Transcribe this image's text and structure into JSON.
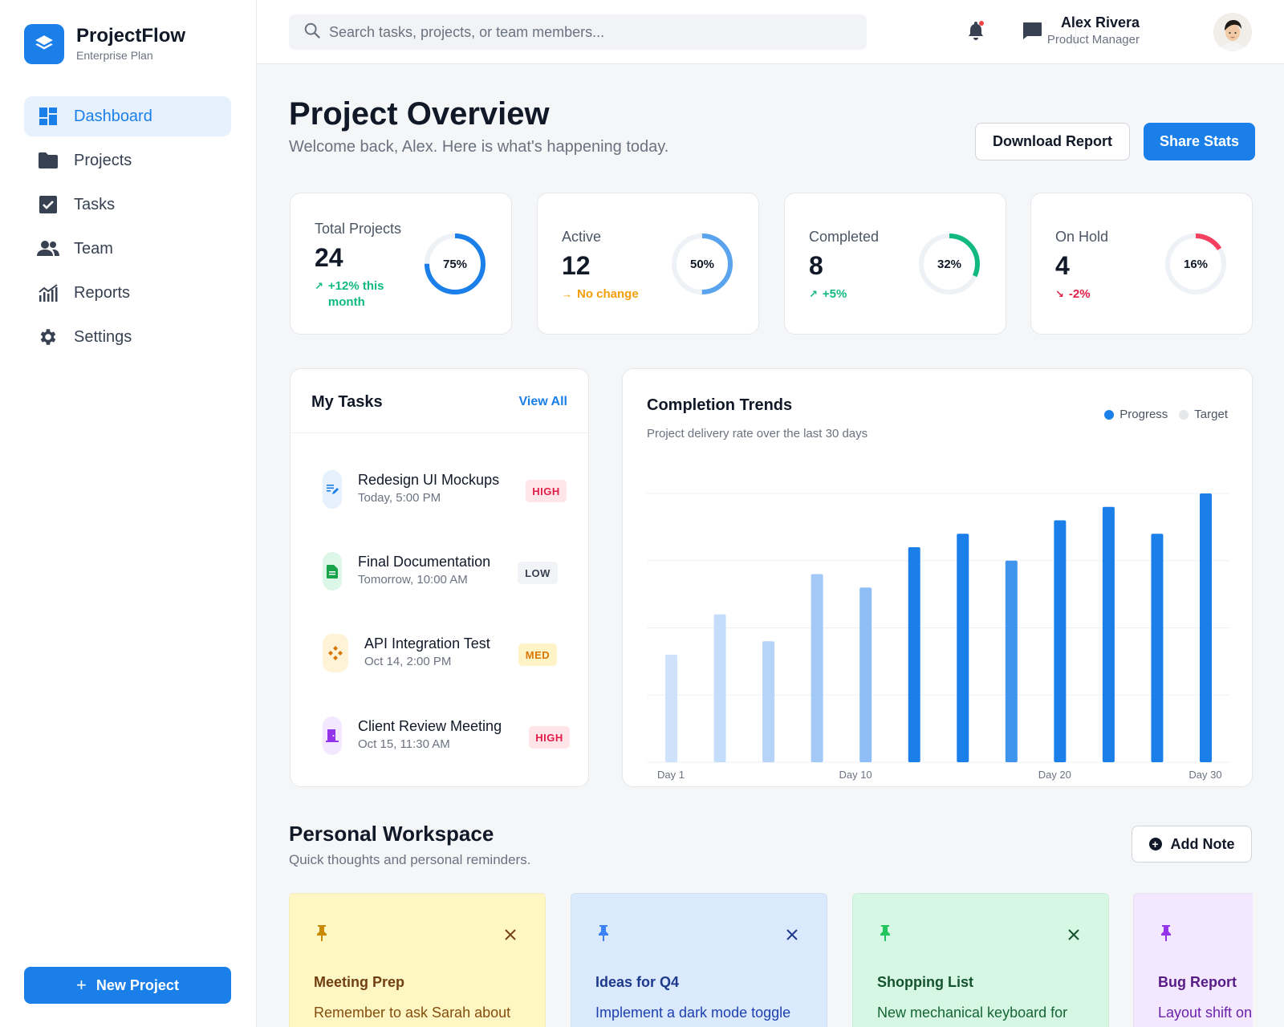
{
  "brand": {
    "name": "ProjectFlow",
    "plan": "Enterprise Plan"
  },
  "nav": [
    {
      "label": "Dashboard",
      "icon": "dashboard-icon",
      "active": true
    },
    {
      "label": "Projects",
      "icon": "folder-icon"
    },
    {
      "label": "Tasks",
      "icon": "checkbox-icon"
    },
    {
      "label": "Team",
      "icon": "team-icon"
    },
    {
      "label": "Reports",
      "icon": "chart-icon"
    },
    {
      "label": "Settings",
      "icon": "gear-icon"
    }
  ],
  "new_project_label": "New Project",
  "search": {
    "placeholder": "Search tasks, projects, or team members..."
  },
  "user": {
    "name": "Alex Rivera",
    "role": "Product Manager"
  },
  "page": {
    "title": "Project Overview",
    "subtitle": "Welcome back, Alex. Here is what's happening today.",
    "download_label": "Download Report",
    "share_label": "Share Stats"
  },
  "stats": [
    {
      "label": "Total Projects",
      "value": "24",
      "trend_line1": "+12% this",
      "trend_line2": "month",
      "trend_icon": "trend-up-icon",
      "percent": "75%",
      "fraction": 0.75,
      "color": "#1a7fe8",
      "trend_color": "#10b981"
    },
    {
      "label": "Active",
      "value": "12",
      "trend_line1": "No change",
      "trend_line2": "",
      "trend_icon": "arrow-right-icon",
      "percent": "50%",
      "fraction": 0.5,
      "color": "#5aa3ee",
      "trend_color": "#f59e0b"
    },
    {
      "label": "Completed",
      "value": "8",
      "trend_line1": "+5%",
      "trend_line2": "",
      "trend_icon": "trend-up-icon",
      "percent": "32%",
      "fraction": 0.32,
      "color": "#10b981",
      "trend_color": "#10b981"
    },
    {
      "label": "On Hold",
      "value": "4",
      "trend_line1": "-2%",
      "trend_line2": "",
      "trend_icon": "trend-down-icon",
      "percent": "16%",
      "fraction": 0.16,
      "color": "#f43f5e",
      "trend_color": "#e11d48"
    }
  ],
  "tasks_panel": {
    "title": "My Tasks",
    "view_all": "View All",
    "tasks": [
      {
        "title": "Redesign UI Mockups",
        "time": "Today, 5:00 PM",
        "priority": "HIGH",
        "icon": "edit-document-icon"
      },
      {
        "title": "Final Documentation",
        "time": "Tomorrow, 10:00 AM",
        "priority": "LOW",
        "icon": "document-icon"
      },
      {
        "title": "API Integration Test",
        "time": "Oct 14, 2:00 PM",
        "priority": "MED",
        "icon": "api-icon"
      },
      {
        "title": "Client Review Meeting",
        "time": "Oct 15, 11:30 AM",
        "priority": "HIGH",
        "icon": "meeting-room-icon"
      }
    ]
  },
  "chart_data": {
    "type": "bar",
    "title": "Completion Trends",
    "subtitle": "Project delivery rate over the last 30 days",
    "legend": [
      "Progress",
      "Target"
    ],
    "legend_colors": [
      "#1a7fe8",
      "#e5e7eb"
    ],
    "x_tick_labels": [
      "Day 1",
      "Day 10",
      "Day 20",
      "Day 30"
    ],
    "values": [
      40,
      55,
      45,
      70,
      65,
      80,
      85,
      75,
      90,
      95,
      85,
      100
    ],
    "ylim": [
      0,
      100
    ],
    "grid": true
  },
  "workspace": {
    "title": "Personal Workspace",
    "subtitle": "Quick thoughts and personal reminders.",
    "add_note": "Add Note",
    "notes": [
      {
        "title": "Meeting Prep",
        "body": "Remember to ask Sarah about",
        "bg": "#fef7c3",
        "accent": "#ca8a04",
        "title_color": "#713f12",
        "body_color": "#854d0e"
      },
      {
        "title": "Ideas for Q4",
        "body": "Implement a dark mode toggle",
        "bg": "#dbe9fd",
        "accent": "#3b82f6",
        "title_color": "#1e3a8a",
        "body_color": "#1e40af"
      },
      {
        "title": "Shopping List",
        "body": "New mechanical keyboard for",
        "bg": "#d5f7e3",
        "accent": "#22c55e",
        "title_color": "#14532d",
        "body_color": "#166534"
      },
      {
        "title": "Bug Report",
        "body": "Layout shift on",
        "bg": "#f3e8ff",
        "accent": "#9333ea",
        "title_color": "#581c87",
        "body_color": "#6b21a8"
      }
    ]
  }
}
